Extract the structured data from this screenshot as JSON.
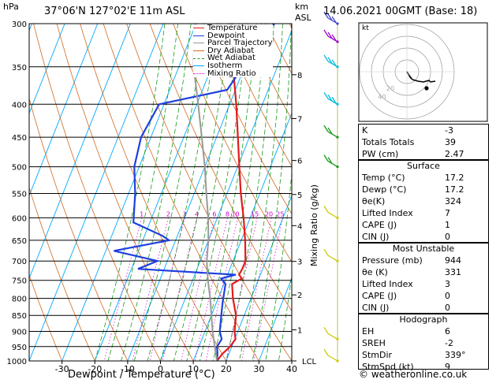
{
  "header": {
    "location": "37°06'N 127°02'E 11m ASL",
    "datetime": "14.06.2021 00GMT (Base: 18)",
    "pressure_unit": "hPa",
    "km_unit": "km",
    "asl_unit": "ASL",
    "credit": "© weatheronline.co.uk"
  },
  "legend": {
    "items": [
      {
        "label": "Temperature",
        "color": "#e41a1c"
      },
      {
        "label": "Dewpoint",
        "color": "#1f3fe0"
      },
      {
        "label": "Parcel Trajectory",
        "color": "#999999"
      },
      {
        "label": "Dry Adiabat",
        "color": "#d2691e"
      },
      {
        "label": "Wet Adiabat",
        "color": "#1a9a1a"
      },
      {
        "label": "Isotherm",
        "color": "#00aaff"
      },
      {
        "label": "Mixing Ratio",
        "color": "#cc00cc"
      }
    ]
  },
  "hodograph": {
    "label": "kt",
    "ring_labels": [
      "20",
      "40"
    ]
  },
  "table_indices": {
    "rows": [
      {
        "label": "K",
        "value": "-3"
      },
      {
        "label": "Totals Totals",
        "value": "39"
      },
      {
        "label": "PW (cm)",
        "value": "2.47"
      }
    ]
  },
  "table_surface": {
    "title": "Surface",
    "rows": [
      {
        "label": "Temp (°C)",
        "value": "17.2"
      },
      {
        "label": "Dewp (°C)",
        "value": "17.2"
      },
      {
        "label": "θe(K)",
        "value": "324"
      },
      {
        "label": "Lifted Index",
        "value": "7"
      },
      {
        "label": "CAPE (J)",
        "value": "1"
      },
      {
        "label": "CIN (J)",
        "value": "0"
      }
    ]
  },
  "table_unstable": {
    "title": "Most Unstable",
    "rows": [
      {
        "label": "Pressure (mb)",
        "value": "944"
      },
      {
        "label": "θe (K)",
        "value": "331"
      },
      {
        "label": "Lifted Index",
        "value": "3"
      },
      {
        "label": "CAPE (J)",
        "value": "0"
      },
      {
        "label": "CIN (J)",
        "value": "0"
      }
    ]
  },
  "table_hodograph": {
    "title": "Hodograph",
    "rows": [
      {
        "label": "EH",
        "value": "6"
      },
      {
        "label": "SREH",
        "value": "-2"
      },
      {
        "label": "StmDir",
        "value": "339°"
      },
      {
        "label": "StmSpd (kt)",
        "value": "9"
      }
    ]
  },
  "chart_data": {
    "type": "line",
    "title": "",
    "xlabel": "Dewpoint / Temperature (°C)",
    "ylabel": "",
    "y2label": "Mixing Ratio (g/kg)",
    "xlim": [
      -40,
      40
    ],
    "x_ticks": [
      "-30",
      "-20",
      "-10",
      "0",
      "10",
      "20",
      "30",
      "40"
    ],
    "pressure_levels": [
      "300",
      "350",
      "400",
      "450",
      "500",
      "550",
      "600",
      "650",
      "700",
      "750",
      "800",
      "850",
      "900",
      "950",
      "1000"
    ],
    "km_levels": [
      {
        "label": "8",
        "p": 360
      },
      {
        "label": "7",
        "p": 421
      },
      {
        "label": "6",
        "p": 489
      },
      {
        "label": "5",
        "p": 552
      },
      {
        "label": "4",
        "p": 617
      },
      {
        "label": "3",
        "p": 701
      },
      {
        "label": "2",
        "p": 790
      },
      {
        "label": "1",
        "p": 895
      },
      {
        "label": "LCL",
        "p": 1000
      }
    ],
    "mixing_ratio_labels": [
      "1",
      "2",
      "3",
      "4",
      "6",
      "8",
      "10",
      "15",
      "20",
      "25"
    ],
    "series": [
      {
        "name": "Temperature",
        "color": "#e41a1c",
        "points": [
          [
            17.2,
            1000
          ],
          [
            18.0,
            975
          ],
          [
            19.5,
            950
          ],
          [
            20.2,
            925
          ],
          [
            19.0,
            900
          ],
          [
            17.5,
            850
          ],
          [
            14.5,
            800
          ],
          [
            12.5,
            760
          ],
          [
            14.8,
            745
          ],
          [
            13.5,
            735
          ],
          [
            13.8,
            720
          ],
          [
            13.8,
            700
          ],
          [
            11.2,
            650
          ],
          [
            8.0,
            600
          ],
          [
            4.2,
            550
          ],
          [
            0.5,
            500
          ],
          [
            -3.5,
            450
          ],
          [
            -8.0,
            400
          ],
          [
            -13.5,
            350
          ],
          [
            -19.0,
            300
          ]
        ]
      },
      {
        "name": "Dewpoint",
        "color": "#1f3fe0",
        "points": [
          [
            17.2,
            1000
          ],
          [
            16.5,
            975
          ],
          [
            15.5,
            950
          ],
          [
            16.0,
            925
          ],
          [
            14.5,
            900
          ],
          [
            13.0,
            850
          ],
          [
            11.8,
            810
          ],
          [
            10.5,
            760
          ],
          [
            8.5,
            745
          ],
          [
            12.5,
            735
          ],
          [
            -18.0,
            720
          ],
          [
            -13.0,
            700
          ],
          [
            -27.5,
            675
          ],
          [
            -12.0,
            650
          ],
          [
            -14.5,
            640
          ],
          [
            -25.0,
            610
          ],
          [
            -28.0,
            550
          ],
          [
            -31.5,
            500
          ],
          [
            -33.0,
            450
          ],
          [
            -31.5,
            400
          ],
          [
            -12.5,
            380
          ],
          [
            -10.5,
            350
          ],
          [
            -13.0,
            320
          ],
          [
            -6.0,
            300
          ]
        ]
      },
      {
        "name": "Parcel Trajectory",
        "color": "#999999",
        "points": [
          [
            17.2,
            1000
          ],
          [
            14.8,
            950
          ],
          [
            12.3,
            900
          ],
          [
            10.0,
            850
          ],
          [
            7.6,
            800
          ],
          [
            4.7,
            750
          ],
          [
            2.0,
            700
          ],
          [
            0.0,
            650
          ],
          [
            -2.8,
            600
          ],
          [
            -6.3,
            550
          ],
          [
            -10.0,
            500
          ],
          [
            -14.5,
            450
          ],
          [
            -19.6,
            400
          ],
          [
            -25.5,
            350
          ],
          [
            -30.5,
            300
          ]
        ]
      }
    ],
    "wind_barbs_kt": [
      {
        "p": 1000,
        "speed": 10,
        "color": "#cccc00"
      },
      {
        "p": 925,
        "speed": 10,
        "color": "#cccc00"
      },
      {
        "p": 700,
        "speed": 10,
        "color": "#cccc00"
      },
      {
        "p": 600,
        "speed": 10,
        "color": "#cccc00"
      },
      {
        "p": 500,
        "speed": 15,
        "color": "#1a9a1a"
      },
      {
        "p": 450,
        "speed": 15,
        "color": "#1a9a1a"
      },
      {
        "p": 400,
        "speed": 25,
        "color": "#00bbdd"
      },
      {
        "p": 350,
        "speed": 25,
        "color": "#00bbdd"
      },
      {
        "p": 320,
        "speed": 30,
        "color": "#9900cc"
      },
      {
        "p": 300,
        "speed": 30,
        "color": "#4444cc"
      }
    ]
  }
}
